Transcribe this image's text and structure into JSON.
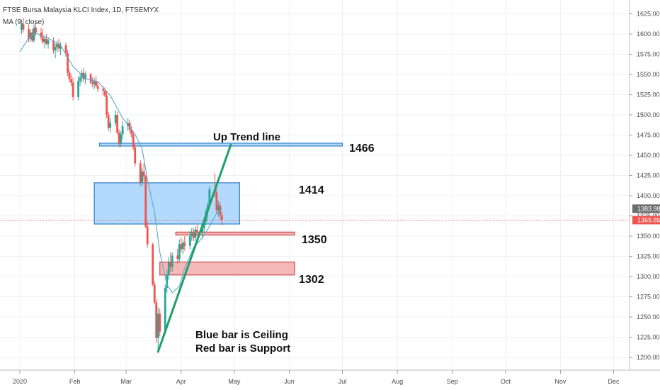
{
  "header": {
    "symbol_title": "FTSE Bursa Malaysia KLCI Index, 1D, FTSEMYX",
    "indicator": "MA (9, close)"
  },
  "colors": {
    "up": "#26a69a",
    "down": "#ef5350",
    "ma": "#5aa8c8",
    "trend": "#1f9e6e",
    "ceiling_fill": "#b3dafc",
    "ceiling_stroke": "#2f7fc9",
    "support_fill": "#f5b8b8",
    "support_stroke": "#d04848",
    "last_tag": "#ef5350",
    "ma_tag": "#6e6e6e"
  },
  "chart_data": {
    "type": "candlestick",
    "y_axis": {
      "min": 1193,
      "max": 1636,
      "ticks": [
        1625,
        1600,
        1575,
        1550,
        1525,
        1500,
        1475,
        1450,
        1425,
        1400,
        1375,
        1350,
        1325,
        1300,
        1275,
        1250,
        1225,
        1200
      ],
      "tick_labels": [
        "1625.00",
        "1600.00",
        "1575.00",
        "1550.00",
        "1525.00",
        "1500.00",
        "1475.00",
        "1450.00",
        "1425.00",
        "1400.00",
        "1375.00",
        "1350.00",
        "1325.00",
        "1300.00",
        "1275.00",
        "1250.00",
        "1225.00",
        "1200.00"
      ]
    },
    "x_axis": {
      "start": "2020-01-01",
      "end": "2020-12-31",
      "ticks": [
        {
          "label": "2020",
          "date": "2020-01-01"
        },
        {
          "label": "Feb",
          "date": "2020-02-01"
        },
        {
          "label": "Mar",
          "date": "2020-03-01"
        },
        {
          "label": "Apr",
          "date": "2020-04-01"
        },
        {
          "label": "May",
          "date": "2020-05-01"
        },
        {
          "label": "Jun",
          "date": "2020-06-01"
        },
        {
          "label": "Jul",
          "date": "2020-07-01"
        },
        {
          "label": "Aug",
          "date": "2020-08-01"
        },
        {
          "label": "Sep",
          "date": "2020-09-01"
        },
        {
          "label": "Oct",
          "date": "2020-10-01"
        },
        {
          "label": "Nov",
          "date": "2020-11-01"
        },
        {
          "label": "Dec",
          "date": "2020-12-01"
        }
      ]
    },
    "last_price": 1369.85,
    "last_price_label": "1369.85",
    "ma_value": 1383.98,
    "ma_value_label": "1383.98",
    "candles": [
      {
        "d": "2020-01-02",
        "o": 1605,
        "h": 1618,
        "l": 1600,
        "c": 1612
      },
      {
        "d": "2020-01-03",
        "o": 1612,
        "h": 1620,
        "l": 1602,
        "c": 1606
      },
      {
        "d": "2020-01-06",
        "o": 1606,
        "h": 1612,
        "l": 1590,
        "c": 1594
      },
      {
        "d": "2020-01-07",
        "o": 1594,
        "h": 1606,
        "l": 1590,
        "c": 1602
      },
      {
        "d": "2020-01-08",
        "o": 1602,
        "h": 1606,
        "l": 1590,
        "c": 1592
      },
      {
        "d": "2020-01-09",
        "o": 1592,
        "h": 1612,
        "l": 1590,
        "c": 1608
      },
      {
        "d": "2020-01-10",
        "o": 1608,
        "h": 1614,
        "l": 1598,
        "c": 1602
      },
      {
        "d": "2020-01-13",
        "o": 1602,
        "h": 1608,
        "l": 1592,
        "c": 1596
      },
      {
        "d": "2020-01-14",
        "o": 1596,
        "h": 1606,
        "l": 1588,
        "c": 1590
      },
      {
        "d": "2020-01-15",
        "o": 1590,
        "h": 1598,
        "l": 1582,
        "c": 1594
      },
      {
        "d": "2020-01-16",
        "o": 1594,
        "h": 1600,
        "l": 1586,
        "c": 1588
      },
      {
        "d": "2020-01-17",
        "o": 1588,
        "h": 1596,
        "l": 1582,
        "c": 1592
      },
      {
        "d": "2020-01-20",
        "o": 1592,
        "h": 1596,
        "l": 1576,
        "c": 1580
      },
      {
        "d": "2020-01-21",
        "o": 1580,
        "h": 1588,
        "l": 1570,
        "c": 1584
      },
      {
        "d": "2020-01-22",
        "o": 1584,
        "h": 1592,
        "l": 1578,
        "c": 1588
      },
      {
        "d": "2020-01-23",
        "o": 1588,
        "h": 1594,
        "l": 1578,
        "c": 1582
      },
      {
        "d": "2020-01-24",
        "o": 1582,
        "h": 1590,
        "l": 1574,
        "c": 1586
      },
      {
        "d": "2020-01-27",
        "o": 1586,
        "h": 1590,
        "l": 1572,
        "c": 1576
      },
      {
        "d": "2020-01-28",
        "o": 1576,
        "h": 1580,
        "l": 1548,
        "c": 1552
      },
      {
        "d": "2020-01-29",
        "o": 1552,
        "h": 1556,
        "l": 1540,
        "c": 1544
      },
      {
        "d": "2020-01-30",
        "o": 1544,
        "h": 1550,
        "l": 1536,
        "c": 1540
      },
      {
        "d": "2020-01-31",
        "o": 1540,
        "h": 1546,
        "l": 1518,
        "c": 1522
      },
      {
        "d": "2020-02-03",
        "o": 1522,
        "h": 1548,
        "l": 1518,
        "c": 1542
      },
      {
        "d": "2020-02-04",
        "o": 1542,
        "h": 1550,
        "l": 1536,
        "c": 1546
      },
      {
        "d": "2020-02-05",
        "o": 1546,
        "h": 1556,
        "l": 1540,
        "c": 1552
      },
      {
        "d": "2020-02-06",
        "o": 1552,
        "h": 1558,
        "l": 1540,
        "c": 1544
      },
      {
        "d": "2020-02-07",
        "o": 1544,
        "h": 1554,
        "l": 1538,
        "c": 1550
      },
      {
        "d": "2020-02-10",
        "o": 1550,
        "h": 1552,
        "l": 1538,
        "c": 1540
      },
      {
        "d": "2020-02-11",
        "o": 1540,
        "h": 1546,
        "l": 1534,
        "c": 1538
      },
      {
        "d": "2020-02-12",
        "o": 1538,
        "h": 1546,
        "l": 1532,
        "c": 1542
      },
      {
        "d": "2020-02-13",
        "o": 1542,
        "h": 1548,
        "l": 1534,
        "c": 1536
      },
      {
        "d": "2020-02-14",
        "o": 1536,
        "h": 1542,
        "l": 1528,
        "c": 1532
      },
      {
        "d": "2020-02-17",
        "o": 1532,
        "h": 1536,
        "l": 1524,
        "c": 1530
      },
      {
        "d": "2020-02-18",
        "o": 1530,
        "h": 1534,
        "l": 1522,
        "c": 1524
      },
      {
        "d": "2020-02-19",
        "o": 1524,
        "h": 1530,
        "l": 1496,
        "c": 1500
      },
      {
        "d": "2020-02-20",
        "o": 1500,
        "h": 1504,
        "l": 1480,
        "c": 1484
      },
      {
        "d": "2020-02-21",
        "o": 1484,
        "h": 1496,
        "l": 1478,
        "c": 1490
      },
      {
        "d": "2020-02-24",
        "o": 1490,
        "h": 1506,
        "l": 1486,
        "c": 1500
      },
      {
        "d": "2020-02-25",
        "o": 1500,
        "h": 1504,
        "l": 1476,
        "c": 1478
      },
      {
        "d": "2020-02-26",
        "o": 1478,
        "h": 1482,
        "l": 1460,
        "c": 1464
      },
      {
        "d": "2020-02-27",
        "o": 1464,
        "h": 1480,
        "l": 1460,
        "c": 1476
      },
      {
        "d": "2020-02-28",
        "o": 1476,
        "h": 1492,
        "l": 1470,
        "c": 1486
      },
      {
        "d": "2020-03-02",
        "o": 1486,
        "h": 1496,
        "l": 1480,
        "c": 1490
      },
      {
        "d": "2020-03-03",
        "o": 1490,
        "h": 1494,
        "l": 1478,
        "c": 1482
      },
      {
        "d": "2020-03-04",
        "o": 1482,
        "h": 1486,
        "l": 1472,
        "c": 1476
      },
      {
        "d": "2020-03-05",
        "o": 1476,
        "h": 1480,
        "l": 1456,
        "c": 1460
      },
      {
        "d": "2020-03-06",
        "o": 1460,
        "h": 1464,
        "l": 1436,
        "c": 1440
      },
      {
        "d": "2020-03-09",
        "o": 1440,
        "h": 1444,
        "l": 1412,
        "c": 1416
      },
      {
        "d": "2020-03-10",
        "o": 1416,
        "h": 1434,
        "l": 1412,
        "c": 1430
      },
      {
        "d": "2020-03-11",
        "o": 1430,
        "h": 1440,
        "l": 1418,
        "c": 1424
      },
      {
        "d": "2020-03-12",
        "o": 1424,
        "h": 1426,
        "l": 1360,
        "c": 1362
      },
      {
        "d": "2020-03-13",
        "o": 1362,
        "h": 1368,
        "l": 1336,
        "c": 1340
      },
      {
        "d": "2020-03-16",
        "o": 1340,
        "h": 1342,
        "l": 1288,
        "c": 1290
      },
      {
        "d": "2020-03-17",
        "o": 1290,
        "h": 1294,
        "l": 1266,
        "c": 1268
      },
      {
        "d": "2020-03-18",
        "o": 1268,
        "h": 1272,
        "l": 1218,
        "c": 1224
      },
      {
        "d": "2020-03-19",
        "o": 1224,
        "h": 1262,
        "l": 1207,
        "c": 1254
      },
      {
        "d": "2020-03-20",
        "o": 1254,
        "h": 1260,
        "l": 1226,
        "c": 1232
      },
      {
        "d": "2020-03-23",
        "o": 1232,
        "h": 1290,
        "l": 1228,
        "c": 1286
      },
      {
        "d": "2020-03-24",
        "o": 1286,
        "h": 1308,
        "l": 1280,
        "c": 1302
      },
      {
        "d": "2020-03-25",
        "o": 1302,
        "h": 1324,
        "l": 1296,
        "c": 1318
      },
      {
        "d": "2020-03-26",
        "o": 1318,
        "h": 1330,
        "l": 1306,
        "c": 1312
      },
      {
        "d": "2020-03-27",
        "o": 1312,
        "h": 1330,
        "l": 1306,
        "c": 1326
      },
      {
        "d": "2020-03-30",
        "o": 1326,
        "h": 1334,
        "l": 1316,
        "c": 1322
      },
      {
        "d": "2020-03-31",
        "o": 1322,
        "h": 1346,
        "l": 1318,
        "c": 1340
      },
      {
        "d": "2020-04-01",
        "o": 1340,
        "h": 1348,
        "l": 1330,
        "c": 1334
      },
      {
        "d": "2020-04-02",
        "o": 1334,
        "h": 1346,
        "l": 1328,
        "c": 1342
      },
      {
        "d": "2020-04-03",
        "o": 1342,
        "h": 1350,
        "l": 1332,
        "c": 1338
      },
      {
        "d": "2020-04-06",
        "o": 1338,
        "h": 1356,
        "l": 1334,
        "c": 1350
      },
      {
        "d": "2020-04-07",
        "o": 1350,
        "h": 1360,
        "l": 1344,
        "c": 1354
      },
      {
        "d": "2020-04-08",
        "o": 1354,
        "h": 1360,
        "l": 1344,
        "c": 1348
      },
      {
        "d": "2020-04-09",
        "o": 1348,
        "h": 1362,
        "l": 1344,
        "c": 1358
      },
      {
        "d": "2020-04-10",
        "o": 1358,
        "h": 1364,
        "l": 1350,
        "c": 1354
      },
      {
        "d": "2020-04-13",
        "o": 1354,
        "h": 1362,
        "l": 1348,
        "c": 1360
      },
      {
        "d": "2020-04-14",
        "o": 1360,
        "h": 1372,
        "l": 1356,
        "c": 1368
      },
      {
        "d": "2020-04-15",
        "o": 1368,
        "h": 1384,
        "l": 1364,
        "c": 1380
      },
      {
        "d": "2020-04-16",
        "o": 1380,
        "h": 1392,
        "l": 1372,
        "c": 1388
      },
      {
        "d": "2020-04-17",
        "o": 1388,
        "h": 1412,
        "l": 1384,
        "c": 1408
      },
      {
        "d": "2020-04-20",
        "o": 1408,
        "h": 1428,
        "l": 1398,
        "c": 1404
      },
      {
        "d": "2020-04-21",
        "o": 1404,
        "h": 1408,
        "l": 1378,
        "c": 1382
      },
      {
        "d": "2020-04-22",
        "o": 1382,
        "h": 1394,
        "l": 1374,
        "c": 1388
      },
      {
        "d": "2020-04-23",
        "o": 1388,
        "h": 1392,
        "l": 1370,
        "c": 1376
      },
      {
        "d": "2020-04-24",
        "o": 1376,
        "h": 1380,
        "l": 1364,
        "c": 1370
      }
    ],
    "ma_line": [
      {
        "d": "2020-01-01",
        "v": 1578
      },
      {
        "d": "2020-01-06",
        "v": 1595
      },
      {
        "d": "2020-01-10",
        "v": 1601
      },
      {
        "d": "2020-01-17",
        "v": 1595
      },
      {
        "d": "2020-01-24",
        "v": 1586
      },
      {
        "d": "2020-01-31",
        "v": 1560
      },
      {
        "d": "2020-02-07",
        "v": 1545
      },
      {
        "d": "2020-02-14",
        "v": 1541
      },
      {
        "d": "2020-02-21",
        "v": 1524
      },
      {
        "d": "2020-02-28",
        "v": 1496
      },
      {
        "d": "2020-03-06",
        "v": 1476
      },
      {
        "d": "2020-03-10",
        "v": 1458
      },
      {
        "d": "2020-03-13",
        "v": 1420
      },
      {
        "d": "2020-03-17",
        "v": 1380
      },
      {
        "d": "2020-03-20",
        "v": 1330
      },
      {
        "d": "2020-03-24",
        "v": 1290
      },
      {
        "d": "2020-03-27",
        "v": 1280
      },
      {
        "d": "2020-03-31",
        "v": 1288
      },
      {
        "d": "2020-04-03",
        "v": 1310
      },
      {
        "d": "2020-04-08",
        "v": 1336
      },
      {
        "d": "2020-04-13",
        "v": 1348
      },
      {
        "d": "2020-04-17",
        "v": 1362
      },
      {
        "d": "2020-04-21",
        "v": 1378
      },
      {
        "d": "2020-04-24",
        "v": 1384
      }
    ],
    "zones": [
      {
        "kind": "ceiling",
        "from": "2020-02-15",
        "to": "2020-07-01",
        "y1": 1462,
        "y2": 1465,
        "label": "1466"
      },
      {
        "kind": "ceiling",
        "from": "2020-02-12",
        "to": "2020-05-04",
        "y1": 1365,
        "y2": 1416,
        "label": "1414"
      },
      {
        "kind": "support",
        "from": "2020-03-29",
        "to": "2020-06-04",
        "y1": 1352,
        "y2": 1355,
        "label": "1350"
      },
      {
        "kind": "support",
        "from": "2020-03-20",
        "to": "2020-06-04",
        "y1": 1302,
        "y2": 1318,
        "label": "1302"
      }
    ],
    "trend_line": {
      "from": {
        "d": "2020-03-19",
        "v": 1207
      },
      "to": {
        "d": "2020-04-29",
        "v": 1463
      },
      "label": "Up Trend line"
    },
    "notes": [
      "Blue bar is Ceiling",
      "Red bar is Support"
    ]
  }
}
